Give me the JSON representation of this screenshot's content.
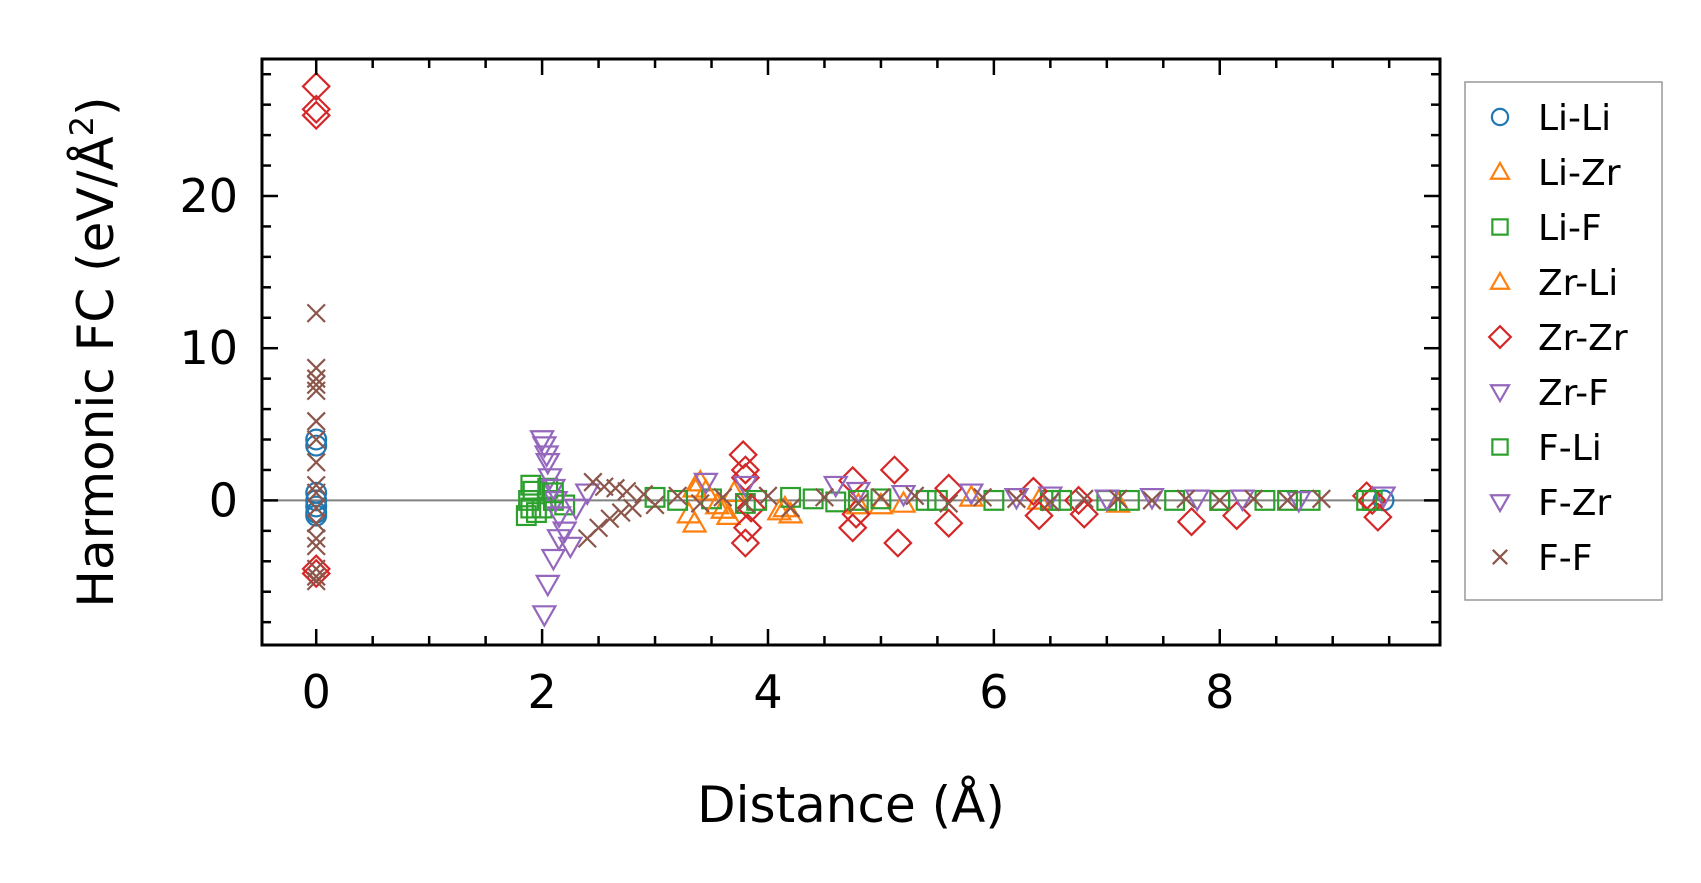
{
  "chart_data": {
    "type": "scatter",
    "title": "",
    "xlabel": "Distance (Å)",
    "ylabel_main": "Harmonic FC (eV/Å",
    "ylabel_sup": "2",
    "ylabel_close": ")",
    "xlim": [
      -0.48,
      9.95
    ],
    "ylim": [
      -9.5,
      29
    ],
    "xticks": [
      {
        "v": 0,
        "label": "0"
      },
      {
        "v": 2,
        "label": "2"
      },
      {
        "v": 4,
        "label": "4"
      },
      {
        "v": 6,
        "label": "6"
      },
      {
        "v": 8,
        "label": "8"
      }
    ],
    "yticks": [
      {
        "v": 0,
        "label": "0"
      },
      {
        "v": 10,
        "label": "10"
      },
      {
        "v": 20,
        "label": "20"
      }
    ],
    "x_minor_step": 0.5,
    "y_minor_step": 2,
    "zero_line": true,
    "grid": false,
    "legend_position": "outside-right",
    "series": [
      {
        "name": "Li-Li",
        "marker": "circle",
        "color": "#1f77b4",
        "x": [
          0,
          0,
          0,
          0,
          0,
          0,
          0,
          9.45
        ],
        "y": [
          4.0,
          3.6,
          0.5,
          0.0,
          -0.4,
          -0.8,
          -1.0,
          0.0
        ]
      },
      {
        "name": "Li-Zr",
        "marker": "triangle-up",
        "color": "#ff7f0e",
        "x": [
          3.35,
          3.35,
          3.4,
          3.6,
          3.65,
          3.7,
          4.1,
          4.2,
          4.8,
          5.0,
          6.4,
          7.1
        ],
        "y": [
          -1.5,
          0.8,
          1.2,
          -0.6,
          -1.0,
          0.5,
          -0.7,
          -0.9,
          -0.3,
          -0.3,
          0.0,
          -0.2
        ]
      },
      {
        "name": "Li-F",
        "marker": "square",
        "color": "#2ca02c",
        "x": [
          1.86,
          1.88,
          1.9,
          1.92,
          1.95,
          2.0,
          2.05,
          2.1,
          2.2,
          3.0,
          3.5,
          3.8,
          4.2,
          4.4,
          4.6,
          5.0,
          5.5,
          6.0,
          6.5,
          7.0,
          7.6,
          8.0,
          8.4,
          8.8,
          9.35
        ],
        "y": [
          -1.0,
          0.0,
          1.0,
          0.6,
          -0.8,
          -0.5,
          0.8,
          0.0,
          -0.3,
          0.2,
          0.1,
          -0.2,
          0.2,
          0.1,
          -0.1,
          0.1,
          0.0,
          0.0,
          0.0,
          0.0,
          0.0,
          0.0,
          0.0,
          0.0,
          0.0
        ]
      },
      {
        "name": "Zr-Li",
        "marker": "triangle-up",
        "color": "#ff7f0e",
        "x": [
          3.3,
          3.45,
          3.55,
          4.15,
          5.2,
          5.8
        ],
        "y": [
          -0.9,
          0.6,
          -0.3,
          -0.5,
          -0.2,
          0.2
        ]
      },
      {
        "name": "Zr-Zr",
        "marker": "diamond",
        "color": "#d62728",
        "x": [
          0,
          0,
          0,
          0,
          0,
          3.78,
          3.8,
          3.8,
          3.82,
          3.8,
          3.85,
          4.75,
          4.75,
          4.78,
          5.12,
          5.15,
          5.6,
          5.6,
          6.35,
          6.4,
          6.75,
          6.8,
          7.75,
          8.15,
          9.3,
          9.35,
          9.4
        ],
        "y": [
          27.2,
          25.7,
          25.3,
          -4.5,
          -4.8,
          3.0,
          2.0,
          1.5,
          -1.8,
          -2.8,
          -0.5,
          1.3,
          -1.8,
          -0.9,
          2.0,
          -2.8,
          0.8,
          -1.5,
          0.6,
          -1.0,
          0.0,
          -0.9,
          -1.4,
          -1.0,
          0.3,
          0.0,
          -1.1
        ]
      },
      {
        "name": "Zr-F",
        "marker": "triangle-down",
        "color": "#9467bd",
        "x": [
          2.0,
          2.02,
          2.04,
          2.05,
          2.07,
          2.1,
          2.12,
          2.15,
          2.2,
          2.25,
          3.45,
          3.8,
          4.6,
          4.8,
          5.2,
          5.8,
          6.2,
          6.5,
          7.0,
          7.4,
          7.8,
          8.2,
          8.7,
          9.45
        ],
        "y": [
          4.0,
          3.6,
          3.0,
          2.5,
          1.5,
          0.8,
          0.0,
          -1.0,
          -2.0,
          -3.0,
          1.2,
          1.0,
          1.0,
          0.6,
          0.4,
          0.5,
          0.2,
          0.3,
          0.1,
          0.2,
          0.1,
          0.1,
          0.0,
          0.3
        ]
      },
      {
        "name": "F-Li",
        "marker": "square",
        "color": "#2ca02c",
        "x": [
          1.9,
          2.1,
          3.2,
          3.9,
          4.8,
          5.4,
          6.6,
          7.2,
          8.0,
          8.6,
          9.3
        ],
        "y": [
          -0.5,
          0.5,
          0.0,
          0.0,
          0.0,
          0.0,
          0.0,
          0.0,
          0.0,
          0.0,
          0.0
        ]
      },
      {
        "name": "F-Zr",
        "marker": "triangle-down",
        "color": "#9467bd",
        "x": [
          2.02,
          2.05,
          2.1,
          2.15,
          2.3,
          2.4
        ],
        "y": [
          -7.5,
          -5.5,
          -3.8,
          -2.5,
          -0.5,
          0.5
        ]
      },
      {
        "name": "F-F",
        "marker": "cross",
        "color": "#8c564b",
        "x": [
          0,
          0,
          0,
          0,
          0,
          0,
          0,
          0,
          0,
          0,
          0,
          0,
          0,
          0,
          0,
          0,
          0,
          2.4,
          2.45,
          2.5,
          2.55,
          2.6,
          2.65,
          2.7,
          2.75,
          2.8,
          2.9,
          3.0,
          3.2,
          3.4,
          3.6,
          3.8,
          4.0,
          4.2,
          4.5,
          4.8,
          5.0,
          5.3,
          5.6,
          5.9,
          6.2,
          6.5,
          6.8,
          7.1,
          7.4,
          7.7,
          8.0,
          8.3,
          8.6,
          8.9
        ],
        "y": [
          12.3,
          8.7,
          8.0,
          7.6,
          7.2,
          5.2,
          4.0,
          2.5,
          1.0,
          0.5,
          -0.5,
          -1.5,
          -2.5,
          -3.0,
          -4.5,
          -5.0,
          -5.3,
          -2.5,
          1.2,
          -1.8,
          0.9,
          -1.2,
          0.8,
          -0.8,
          0.6,
          -0.5,
          0.4,
          -0.3,
          0.3,
          -0.2,
          0.2,
          -0.2,
          0.3,
          -0.5,
          0.2,
          -0.2,
          0.2,
          0.3,
          -0.2,
          0.2,
          0.1,
          -0.1,
          0.1,
          0.1,
          0.0,
          0.1,
          0.0,
          0.1,
          0.0,
          0.1
        ]
      }
    ]
  }
}
